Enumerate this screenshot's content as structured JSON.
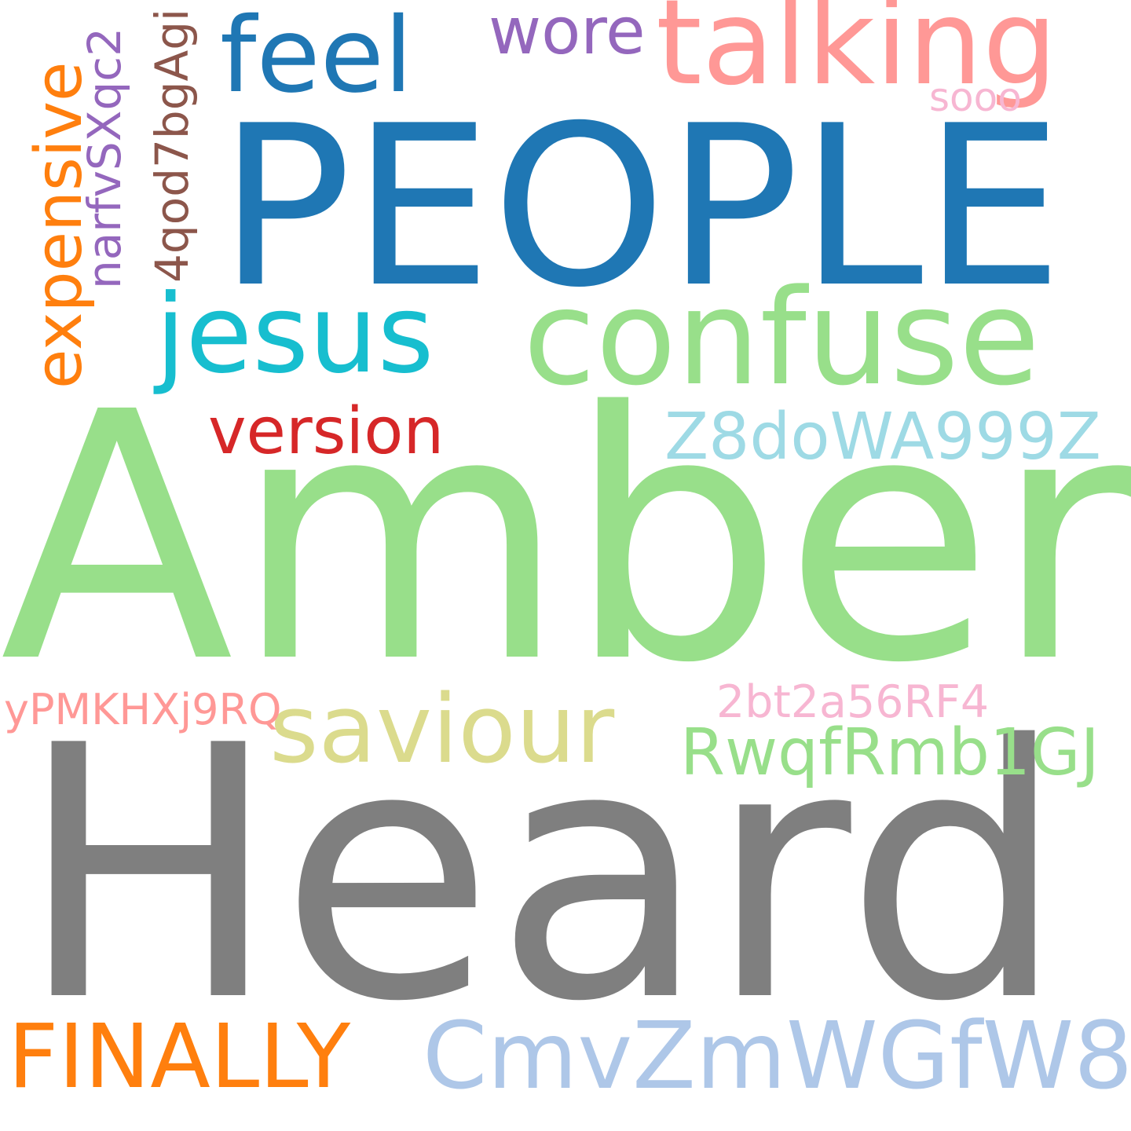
{
  "cloud": {
    "words": [
      {
        "text": "Amber",
        "color": "#98df8a"
      },
      {
        "text": "Heard",
        "color": "#7f7f7f"
      },
      {
        "text": "PEOPLE",
        "color": "#1f77b4"
      },
      {
        "text": "confuse",
        "color": "#98df8a"
      },
      {
        "text": "talking",
        "color": "#ff9896"
      },
      {
        "text": "feel",
        "color": "#1f77b4"
      },
      {
        "text": "jesus",
        "color": "#17becf"
      },
      {
        "text": "saviour",
        "color": "#dbdb8d"
      },
      {
        "text": "FINALLY",
        "color": "#ff7f0e"
      },
      {
        "text": "CmvZmWGfW8",
        "color": "#aec7e8"
      },
      {
        "text": "version",
        "color": "#d62728"
      },
      {
        "text": "Z8doWA999Z",
        "color": "#9edae5"
      },
      {
        "text": "RwqfRmb1GJ",
        "color": "#98df8a"
      },
      {
        "text": "2bt2a56RF4",
        "color": "#f7b6d2"
      },
      {
        "text": "yPMKHXj9RQ",
        "color": "#ff9896"
      },
      {
        "text": "wore",
        "color": "#9467bd"
      },
      {
        "text": "sooo",
        "color": "#f7b6d2"
      },
      {
        "text": "expensive",
        "color": "#ff7f0e"
      },
      {
        "text": "narfvSXqc2",
        "color": "#9467bd"
      },
      {
        "text": "4qod7bgAgi",
        "color": "#8c564b"
      }
    ]
  }
}
